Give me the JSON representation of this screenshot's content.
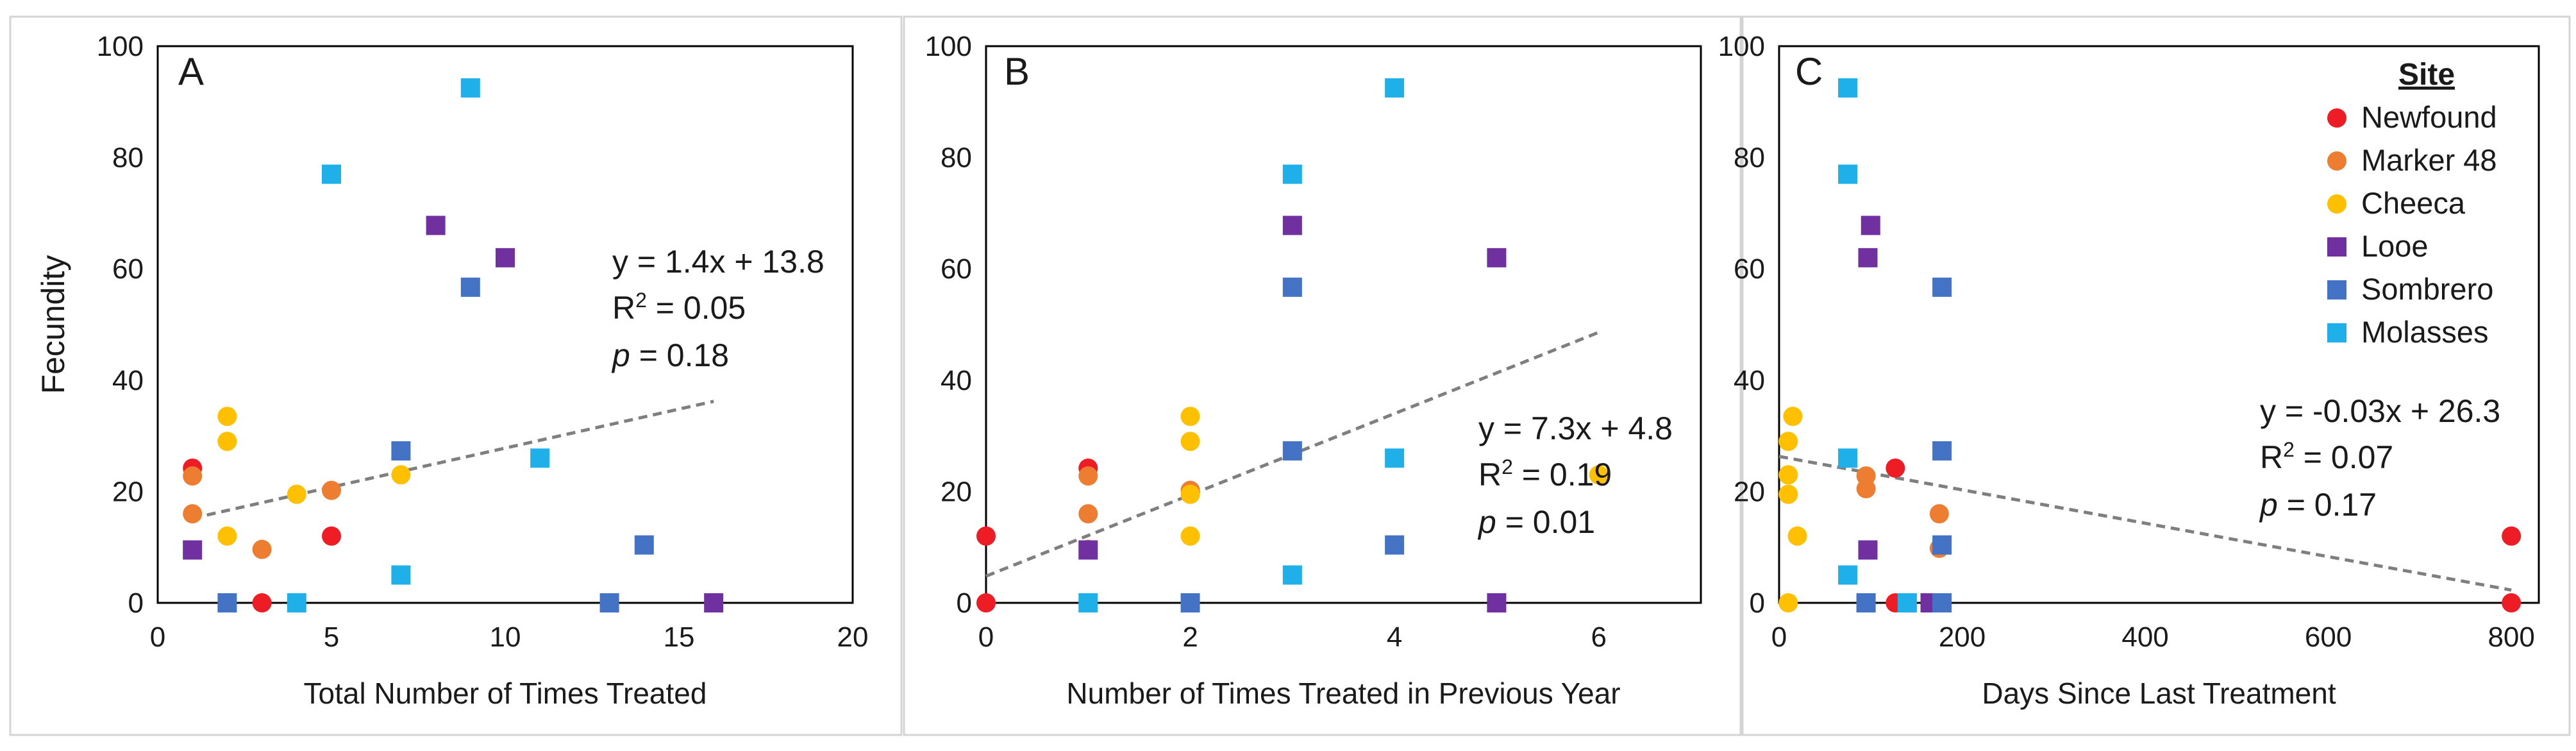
{
  "colors": {
    "Newfound": "#ee1c24",
    "Marker 48": "#ed7d31",
    "Cheeca": "#fec000",
    "Looe": "#7030a0",
    "Sombrero": "#4472c4",
    "Molasses": "#1fb0ea",
    "trendline": "#7f7f7f"
  },
  "chart_data": [
    {
      "type": "scatter",
      "panel": "A",
      "title": "",
      "xlabel": "Total Number of Times Treated",
      "ylabel": "Fecundity",
      "xlim": [
        0,
        20
      ],
      "ylim": [
        0,
        100
      ],
      "xticks": [
        0,
        5,
        10,
        15,
        20
      ],
      "yticks": [
        0,
        20,
        40,
        60,
        80,
        100
      ],
      "trendline": {
        "slope": 1.4,
        "intercept": 13.8,
        "x_range": [
          1,
          16
        ]
      },
      "annotation": {
        "equation": "y = 1.4x + 13.8",
        "r2_label": "R",
        "r2_sup": "2",
        "r2_value": " = 0.05",
        "p_label": "p",
        "p_value": " = 0.18"
      },
      "series": [
        {
          "name": "Newfound",
          "marker": "circle",
          "points": [
            [
              1,
              24.2
            ],
            [
              3,
              0
            ],
            [
              5,
              12
            ]
          ]
        },
        {
          "name": "Marker 48",
          "marker": "circle",
          "points": [
            [
              1,
              16
            ],
            [
              1,
              22.8
            ],
            [
              3,
              9.6
            ],
            [
              5,
              20.2
            ]
          ]
        },
        {
          "name": "Cheeca",
          "marker": "circle",
          "points": [
            [
              2,
              33.5
            ],
            [
              2,
              29
            ],
            [
              2,
              12
            ],
            [
              4,
              19.5
            ],
            [
              7,
              23
            ]
          ]
        },
        {
          "name": "Looe",
          "marker": "square",
          "points": [
            [
              1,
              9.5
            ],
            [
              8,
              67.8
            ],
            [
              10,
              62
            ],
            [
              16,
              0
            ]
          ]
        },
        {
          "name": "Sombrero",
          "marker": "square",
          "points": [
            [
              2,
              0
            ],
            [
              7,
              27.3
            ],
            [
              9,
              56.7
            ],
            [
              13,
              0
            ],
            [
              14,
              10.4
            ]
          ]
        },
        {
          "name": "Molasses",
          "marker": "square",
          "points": [
            [
              4,
              0
            ],
            [
              5,
              77
            ],
            [
              7,
              5
            ],
            [
              9,
              92.5
            ],
            [
              11,
              26
            ]
          ]
        }
      ]
    },
    {
      "type": "scatter",
      "panel": "B",
      "title": "",
      "xlabel": "Number of Times Treated in Previous Year",
      "ylabel": "",
      "xlim": [
        0,
        7
      ],
      "ylim": [
        0,
        100
      ],
      "xticks": [
        0,
        2,
        4,
        6
      ],
      "yticks": [
        0,
        20,
        40,
        60,
        80,
        100
      ],
      "trendline": {
        "slope": 7.3,
        "intercept": 4.8,
        "x_range": [
          0,
          6
        ]
      },
      "annotation": {
        "equation": "y = 7.3x + 4.8",
        "r2_label": "R",
        "r2_sup": "2",
        "r2_value": " = 0.19",
        "p_label": "p",
        "p_value": " = 0.01"
      },
      "series": [
        {
          "name": "Newfound",
          "marker": "circle",
          "points": [
            [
              0,
              0
            ],
            [
              0,
              12
            ],
            [
              1,
              24.2
            ]
          ]
        },
        {
          "name": "Marker 48",
          "marker": "circle",
          "points": [
            [
              1,
              16
            ],
            [
              1,
              22.8
            ],
            [
              1,
              9.6
            ],
            [
              2,
              20.2
            ]
          ]
        },
        {
          "name": "Cheeca",
          "marker": "circle",
          "points": [
            [
              2,
              33.5
            ],
            [
              2,
              29
            ],
            [
              2,
              12
            ],
            [
              2,
              19.5
            ],
            [
              6,
              23
            ]
          ]
        },
        {
          "name": "Looe",
          "marker": "square",
          "points": [
            [
              1,
              9.5
            ],
            [
              3,
              67.8
            ],
            [
              5,
              62
            ],
            [
              5,
              0
            ]
          ]
        },
        {
          "name": "Sombrero",
          "marker": "square",
          "points": [
            [
              2,
              0
            ],
            [
              3,
              27.3
            ],
            [
              3,
              56.7
            ],
            [
              4,
              10.4
            ]
          ]
        },
        {
          "name": "Molasses",
          "marker": "square",
          "points": [
            [
              1,
              0
            ],
            [
              3,
              77
            ],
            [
              3,
              5
            ],
            [
              4,
              92.5
            ],
            [
              4,
              26
            ]
          ]
        }
      ]
    },
    {
      "type": "scatter",
      "panel": "C",
      "title": "",
      "xlabel": "Days Since Last Treatment",
      "ylabel": "",
      "xlim": [
        0,
        830
      ],
      "ylim": [
        0,
        100
      ],
      "xticks": [
        0,
        200,
        400,
        600,
        800
      ],
      "yticks": [
        0,
        20,
        40,
        60,
        80,
        100
      ],
      "trendline": {
        "slope": -0.03,
        "intercept": 26.3,
        "x_range": [
          0,
          800
        ]
      },
      "annotation": {
        "equation": "y = -0.03x + 26.3",
        "r2_label": "R",
        "r2_sup": "2",
        "r2_value": " = 0.07",
        "p_label": "p",
        "p_value": " = 0.17"
      },
      "series": [
        {
          "name": "Newfound",
          "marker": "circle",
          "points": [
            [
              127,
              24.2
            ],
            [
              127,
              0
            ],
            [
              800,
              12
            ],
            [
              800,
              0
            ]
          ]
        },
        {
          "name": "Marker 48",
          "marker": "circle",
          "points": [
            [
              95,
              20.5
            ],
            [
              95,
              22.8
            ],
            [
              95,
              0
            ],
            [
              175,
              16
            ],
            [
              175,
              9.8
            ]
          ]
        },
        {
          "name": "Cheeca",
          "marker": "circle",
          "points": [
            [
              15,
              33.5
            ],
            [
              10,
              29
            ],
            [
              10,
              23
            ],
            [
              10,
              19.5
            ],
            [
              20,
              12
            ],
            [
              10,
              0
            ]
          ]
        },
        {
          "name": "Looe",
          "marker": "square",
          "points": [
            [
              100,
              67.8
            ],
            [
              97,
              62
            ],
            [
              97,
              9.5
            ],
            [
              165,
              0
            ]
          ]
        },
        {
          "name": "Sombrero",
          "marker": "square",
          "points": [
            [
              178,
              56.7
            ],
            [
              178,
              27.3
            ],
            [
              178,
              10.4
            ],
            [
              178,
              0
            ],
            [
              95,
              0
            ]
          ]
        },
        {
          "name": "Molasses",
          "marker": "square",
          "points": [
            [
              75,
              92.5
            ],
            [
              75,
              77
            ],
            [
              75,
              26
            ],
            [
              75,
              5
            ],
            [
              140,
              0
            ]
          ]
        }
      ],
      "legend": {
        "title": "Site",
        "placement": "top-right",
        "entries": [
          "Newfound",
          "Marker 48",
          "Cheeca",
          "Looe",
          "Sombrero",
          "Molasses"
        ],
        "markers": [
          "circle",
          "circle",
          "circle",
          "square",
          "square",
          "square"
        ]
      }
    }
  ]
}
